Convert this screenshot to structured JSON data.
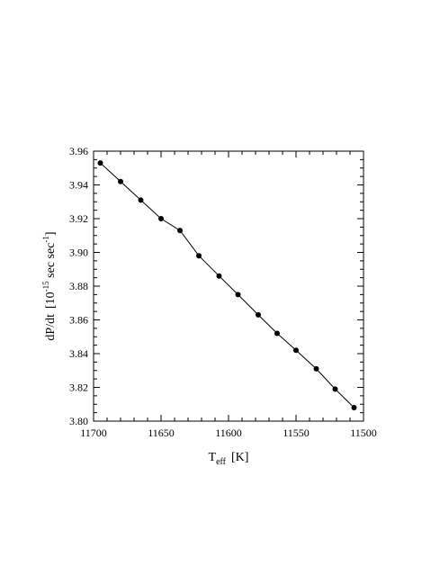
{
  "chart_data": {
    "type": "line",
    "x_axis": {
      "label_main": "T",
      "label_sub": "eff",
      "label_unit": "[K]",
      "range": [
        11700,
        11500
      ],
      "reversed": true,
      "ticks": [
        11700,
        11650,
        11600,
        11550,
        11500
      ],
      "tick_labels": [
        "11700",
        "11650",
        "11600",
        "11550",
        "11500"
      ]
    },
    "y_axis": {
      "label_main": "dP/dt",
      "label_unit_open": "[10",
      "label_sup1": "-15",
      "label_unit_mid": " sec sec",
      "label_sup2": "-1",
      "label_unit_close": "]",
      "range": [
        3.8,
        3.96
      ],
      "ticks": [
        3.8,
        3.82,
        3.84,
        3.86,
        3.88,
        3.9,
        3.92,
        3.94,
        3.96
      ],
      "tick_labels": [
        "3.80",
        "3.82",
        "3.84",
        "3.86",
        "3.88",
        "3.90",
        "3.92",
        "3.94",
        "3.96"
      ]
    },
    "grid": false,
    "series": [
      {
        "x": [
          11695,
          11680,
          11665,
          11650,
          11636,
          11622,
          11607,
          11593,
          11578,
          11564,
          11550,
          11535,
          11521,
          11507
        ],
        "y": [
          3.953,
          3.942,
          3.931,
          3.92,
          3.913,
          3.898,
          3.886,
          3.875,
          3.863,
          3.852,
          3.842,
          3.831,
          3.819,
          3.808
        ]
      }
    ]
  }
}
